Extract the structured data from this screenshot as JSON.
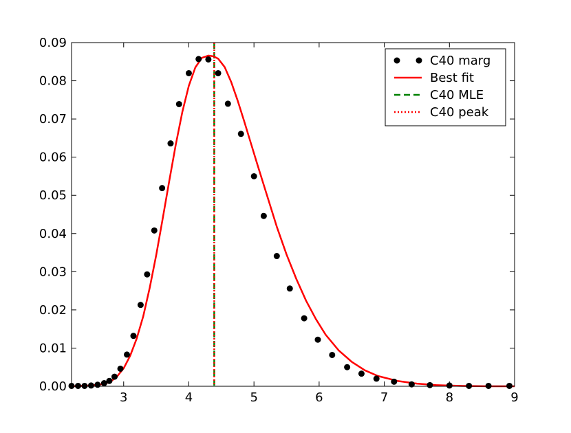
{
  "chart_data": {
    "type": "line",
    "title": "",
    "xlabel": "",
    "ylabel": "",
    "xlim": [
      2.2,
      9.0
    ],
    "ylim": [
      0.0,
      0.09
    ],
    "grid": false,
    "legend_position": "top-right",
    "x_ticks": [
      3,
      4,
      5,
      6,
      7,
      8,
      9
    ],
    "x_tick_labels": [
      "3",
      "4",
      "5",
      "6",
      "7",
      "8",
      "9"
    ],
    "y_ticks": [
      0.0,
      0.01,
      0.02,
      0.03,
      0.04,
      0.05,
      0.06,
      0.07,
      0.08,
      0.09
    ],
    "y_tick_labels": [
      "0.00",
      "0.01",
      "0.02",
      "0.03",
      "0.04",
      "0.05",
      "0.06",
      "0.07",
      "0.08",
      "0.09"
    ],
    "series": [
      {
        "name": "C40 marg",
        "kind": "points",
        "color": "#000000",
        "x": [
          2.2,
          2.3,
          2.4,
          2.5,
          2.6,
          2.7,
          2.78,
          2.86,
          2.95,
          3.05,
          3.15,
          3.26,
          3.36,
          3.47,
          3.59,
          3.72,
          3.85,
          4.0,
          4.15,
          4.3,
          4.45,
          4.6,
          4.8,
          5.0,
          5.15,
          5.35,
          5.55,
          5.77,
          5.98,
          6.2,
          6.43,
          6.65,
          6.88,
          7.15,
          7.42,
          7.7,
          8.0,
          8.3,
          8.6,
          8.92
        ],
        "y": [
          0.0001,
          0.0001,
          0.0001,
          0.0002,
          0.0004,
          0.0008,
          0.0014,
          0.0025,
          0.0046,
          0.0083,
          0.0132,
          0.0213,
          0.0293,
          0.0408,
          0.0519,
          0.0636,
          0.0739,
          0.082,
          0.0857,
          0.0856,
          0.082,
          0.074,
          0.0661,
          0.055,
          0.0446,
          0.0341,
          0.0256,
          0.0178,
          0.0122,
          0.0082,
          0.005,
          0.0033,
          0.002,
          0.0012,
          0.0005,
          0.0003,
          0.0002,
          0.0001,
          0.0001,
          0.0001
        ]
      },
      {
        "name": "Best fit",
        "kind": "line",
        "color": "#ff0000",
        "x": [
          2.2,
          2.5,
          2.7,
          2.8,
          2.9,
          3.0,
          3.1,
          3.2,
          3.3,
          3.4,
          3.5,
          3.6,
          3.7,
          3.8,
          3.9,
          4.0,
          4.1,
          4.2,
          4.3,
          4.38,
          4.45,
          4.55,
          4.65,
          4.75,
          4.85,
          4.95,
          5.05,
          5.2,
          5.35,
          5.5,
          5.65,
          5.8,
          5.95,
          6.1,
          6.3,
          6.5,
          6.7,
          6.9,
          7.2,
          7.5,
          7.8,
          8.2,
          8.6,
          9.0
        ],
        "y": [
          0.0,
          0.0002,
          0.0006,
          0.0012,
          0.0026,
          0.0047,
          0.008,
          0.0125,
          0.0183,
          0.0258,
          0.0344,
          0.044,
          0.0538,
          0.0633,
          0.0718,
          0.0787,
          0.0835,
          0.086,
          0.0866,
          0.0864,
          0.0858,
          0.0836,
          0.0797,
          0.0748,
          0.0694,
          0.0638,
          0.0582,
          0.05,
          0.0418,
          0.0345,
          0.0281,
          0.0224,
          0.0176,
          0.0135,
          0.0094,
          0.0064,
          0.0042,
          0.0027,
          0.0014,
          0.0007,
          0.0003,
          0.0001,
          0.0,
          0.0
        ]
      },
      {
        "name": "C40 MLE",
        "kind": "vline",
        "style": "dashed",
        "color": "#008000",
        "x": 4.39
      },
      {
        "name": "C40 peak",
        "kind": "vline",
        "style": "dotted",
        "color": "#ff0000",
        "x": 4.39
      }
    ]
  }
}
